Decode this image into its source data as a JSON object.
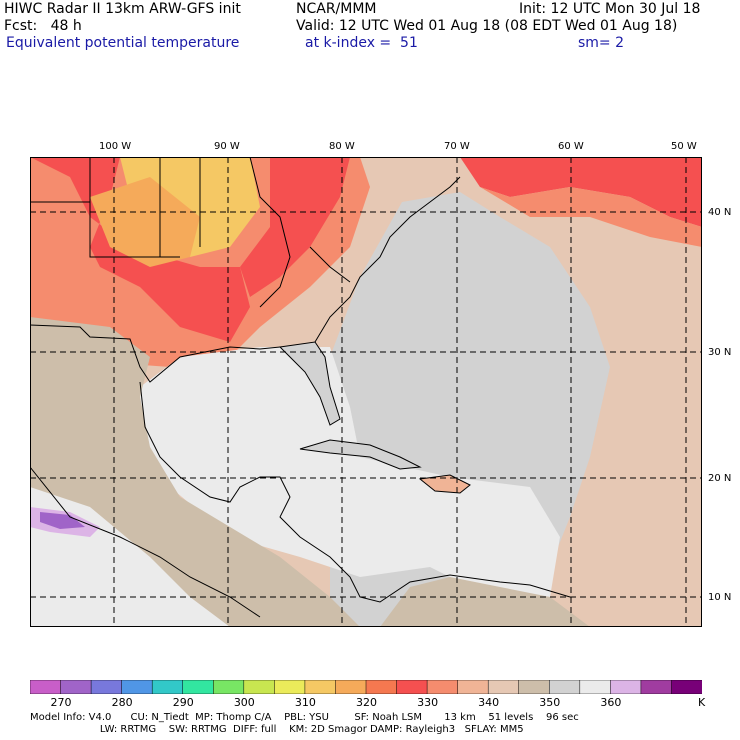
{
  "header": {
    "line1_left": "HIWC Radar II 13km ARW-GFS init",
    "line1_center": "NCAR/MMM",
    "line1_right": "Init: 12 UTC Mon 30 Jul 18",
    "line2_left": "Fcst:   48 h",
    "line2_right": "Valid: 12 UTC Wed 01 Aug 18 (08 EDT Wed 01 Aug 18)",
    "line3_left": "Equivalent potential temperature",
    "line3_center": "at k-index =  51",
    "line3_right": "sm= 2"
  },
  "map": {
    "lon_labels": [
      "100 W",
      "90 W",
      "80 W",
      "70 W",
      "60 W",
      "50 W"
    ],
    "lat_labels": [
      "40 N",
      "30 N",
      "20 N",
      "10 N"
    ],
    "field_description": "shaded equivalent potential temperature with coastlines, country and state borders, dashed lat/lon grid"
  },
  "colorbar": {
    "colors": [
      "#c85ec8",
      "#a064c8",
      "#7878dc",
      "#5096e6",
      "#32c8c8",
      "#32e6a0",
      "#78e664",
      "#c8e650",
      "#ebeb5a",
      "#f5c864",
      "#f5aa5a",
      "#f57850",
      "#f55050",
      "#f58c6e",
      "#f0b496",
      "#e6c8b4",
      "#cdbeaa",
      "#d2d2d2",
      "#ebebeb",
      "#dcb4e6",
      "#a03ca0",
      "#780078"
    ],
    "tick_labels": [
      "270",
      "280",
      "290",
      "300",
      "310",
      "320",
      "330",
      "340",
      "350",
      "360",
      "K"
    ]
  },
  "footer": {
    "line1": "Model Info: V4.0      CU: N_Tiedt  MP: Thomp C/A    PBL: YSU        SF: Noah LSM       13 km    51 levels    96 sec",
    "line2": "                      LW: RRTMG    SW: RRTMG  DIFF: full    KM: 2D Smagor DAMP: Rayleigh3   SFLAY: MM5"
  }
}
